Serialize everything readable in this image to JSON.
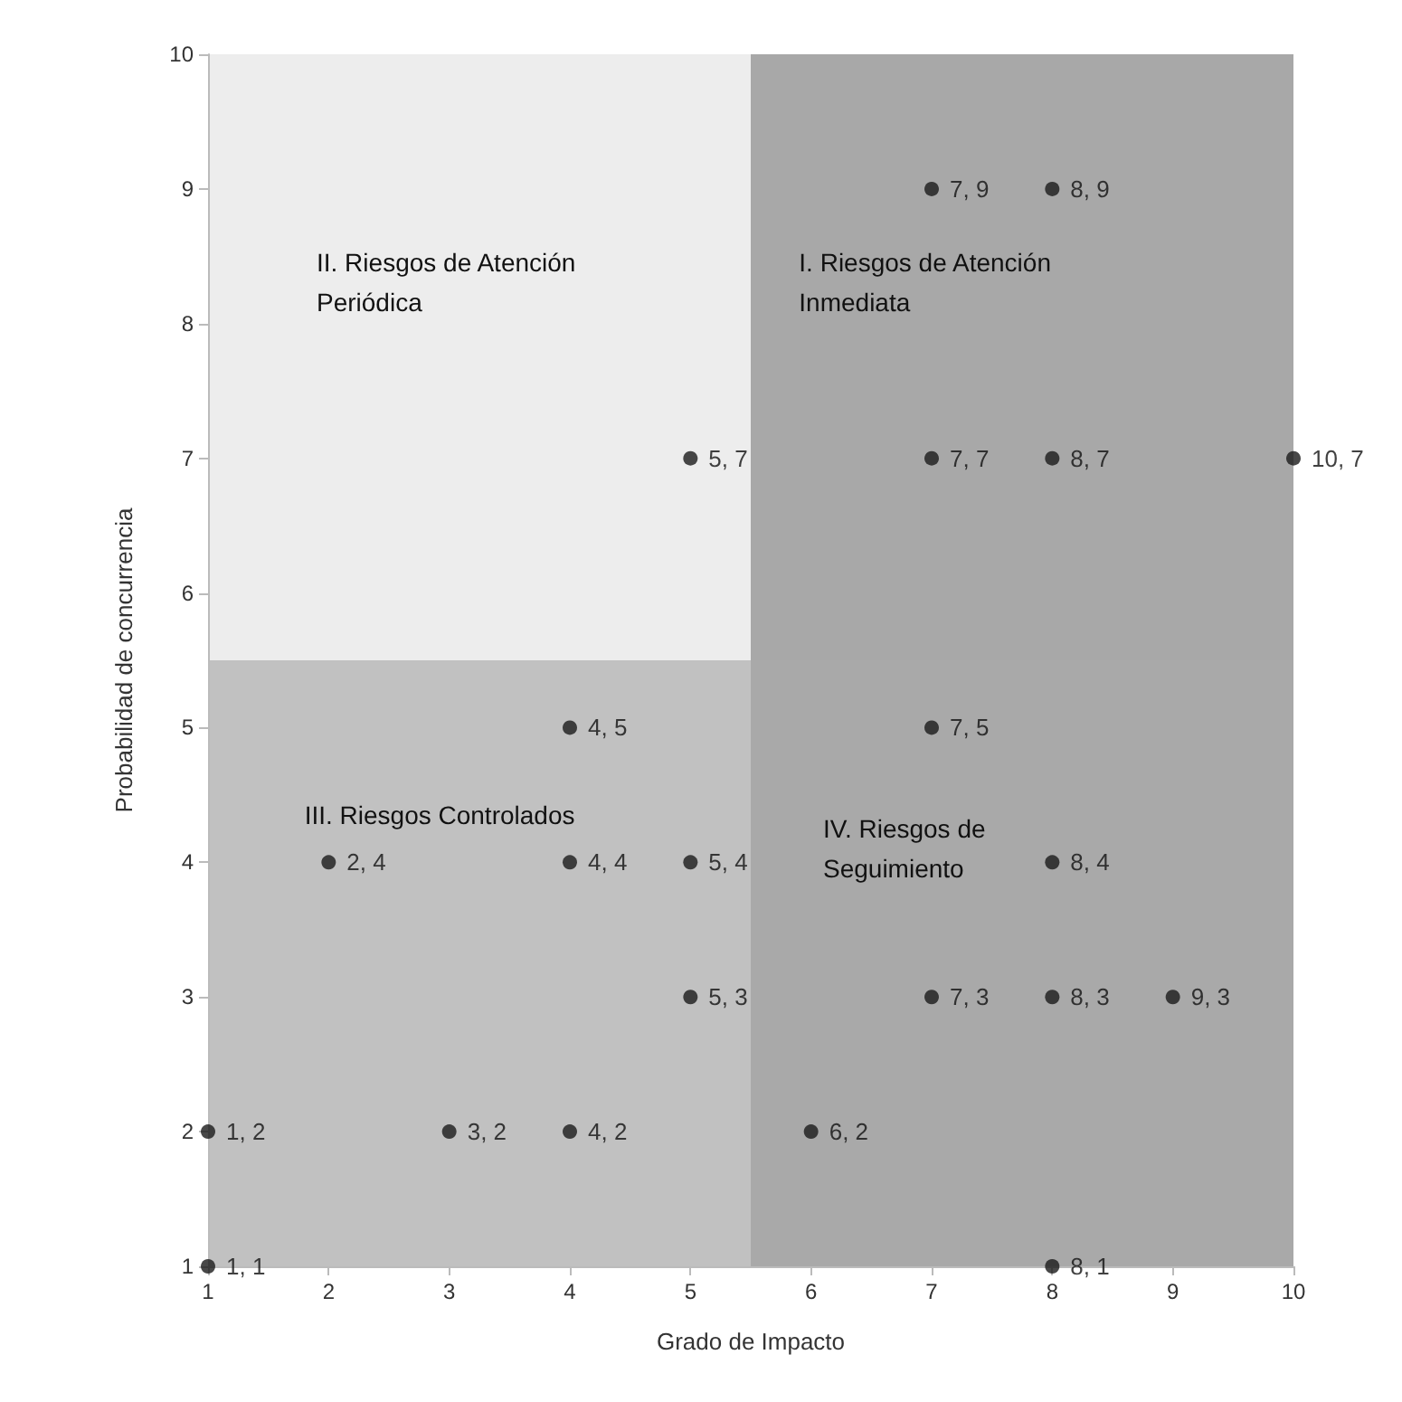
{
  "chart_data": {
    "type": "scatter",
    "xlabel": "Grado de Impacto",
    "ylabel": "Probabilidad de concurrencia",
    "xlim": [
      1,
      10
    ],
    "xticks": [
      1,
      2,
      3,
      4,
      5,
      6,
      7,
      8,
      9,
      10
    ],
    "ylim": [
      1,
      10
    ],
    "yticks": [
      1,
      2,
      3,
      4,
      5,
      6,
      7,
      8,
      9,
      10
    ],
    "marker": "circle",
    "series": [
      {
        "color": "#1a1a1a",
        "x": [
          1,
          1,
          2,
          3,
          4,
          4,
          4,
          5,
          5,
          5,
          6,
          7,
          7,
          7,
          7,
          8,
          8,
          8,
          8,
          8,
          9,
          10
        ],
        "values": [
          1,
          2,
          4,
          2,
          2,
          4,
          5,
          3,
          4,
          7,
          2,
          3,
          5,
          7,
          9,
          1,
          3,
          4,
          7,
          9,
          3,
          7
        ],
        "value_labels": [
          "1, 1",
          "1, 2",
          "2, 4",
          "3, 2",
          "4, 2",
          "4, 4",
          "4, 5",
          "5, 3",
          "5, 4",
          "5, 7",
          "6, 2",
          "7, 3",
          "7, 5",
          "7, 7",
          "7, 9",
          "8, 1",
          "8, 3",
          "8, 4",
          "8, 7",
          "8, 9",
          "9, 3",
          "10, 7"
        ]
      }
    ],
    "bands": [
      {
        "axis": "y",
        "from": 5.5,
        "to": 10,
        "color": "#e6e6e6"
      },
      {
        "axis": "x",
        "from": 5.5,
        "to": 10,
        "color": "#8a8a8a"
      },
      {
        "axis": "y",
        "from": 1,
        "to": 5.5,
        "color": "#a6a6a6"
      }
    ],
    "annotations": [
      "II. Riesgos de Atención Periódica",
      "I. Riesgos de Atención Inmediata",
      "III. Riesgos Controlados",
      "IV. Riesgos de Seguimiento"
    ]
  }
}
